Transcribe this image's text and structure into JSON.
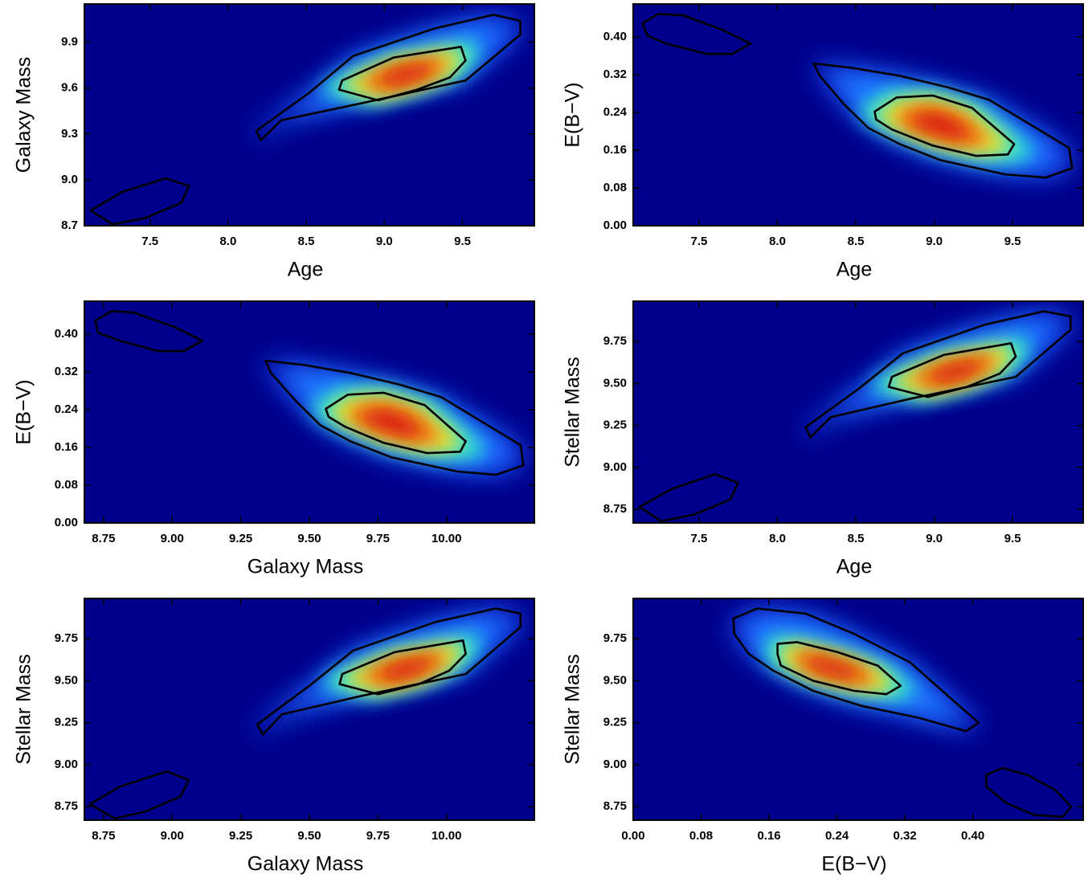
{
  "chart_data": [
    {
      "type": "density",
      "xlabel": "Age",
      "ylabel": "Galaxy Mass",
      "xlim": [
        7.08,
        9.96
      ],
      "ylim": [
        8.7,
        10.15
      ],
      "xticks": [
        7.5,
        {
          "value": 8,
          "label": "8.0"
        },
        8.5,
        {
          "value": 9,
          "label": "9.0"
        },
        9.5
      ],
      "yticks": [
        8.7,
        {
          "value": 9,
          "label": "9.0"
        },
        9.3,
        9.6,
        9.9
      ],
      "contours": [
        {
          "x": [
            8.18,
            8.52,
            8.8,
            9.32,
            9.7,
            9.87,
            9.87,
            9.52,
            8.85,
            8.34,
            8.21
          ],
          "y": [
            9.32,
            9.57,
            9.81,
            9.99,
            10.08,
            10.04,
            9.95,
            9.65,
            9.5,
            9.39,
            9.26
          ]
        },
        {
          "x": [
            8.73,
            9.06,
            9.49,
            9.52,
            9.42,
            9.21,
            8.96,
            8.71
          ],
          "y": [
            9.65,
            9.8,
            9.87,
            9.78,
            9.67,
            9.59,
            9.52,
            9.59
          ]
        },
        {
          "x": [
            7.12,
            7.32,
            7.6,
            7.75,
            7.7,
            7.47,
            7.26
          ],
          "y": [
            8.8,
            8.92,
            9.01,
            8.96,
            8.85,
            8.75,
            8.71
          ]
        }
      ]
    },
    {
      "type": "density",
      "xlabel": "Age",
      "ylabel": "E(B−V)",
      "xlim": [
        7.08,
        9.95
      ],
      "ylim": [
        0,
        0.47
      ],
      "xticks": [
        7.5,
        {
          "value": 8,
          "label": "8.0"
        },
        8.5,
        {
          "value": 9,
          "label": "9.0"
        },
        9.5
      ],
      "yticks": [
        {
          "value": 0,
          "label": "0.00"
        },
        0.08,
        0.16,
        0.24,
        0.32,
        {
          "value": 0.4,
          "label": "0.40"
        }
      ],
      "contours": [
        {
          "x": [
            8.23,
            8.47,
            8.78,
            9.09,
            9.35,
            9.65,
            9.86,
            9.88,
            9.71,
            9.45,
            9.04,
            8.78,
            8.58,
            8.42,
            8.27
          ],
          "y": [
            0.344,
            0.335,
            0.318,
            0.293,
            0.267,
            0.207,
            0.165,
            0.122,
            0.102,
            0.109,
            0.139,
            0.173,
            0.207,
            0.259,
            0.318
          ]
        },
        {
          "x": [
            8.62,
            8.76,
            8.99,
            9.24,
            9.51,
            9.47,
            9.27,
            8.99,
            8.73,
            8.63
          ],
          "y": [
            0.242,
            0.272,
            0.276,
            0.25,
            0.173,
            0.151,
            0.148,
            0.17,
            0.204,
            0.225
          ]
        },
        {
          "x": [
            7.14,
            7.24,
            7.4,
            7.65,
            7.83,
            7.71,
            7.55,
            7.29,
            7.17
          ],
          "y": [
            0.429,
            0.449,
            0.446,
            0.415,
            0.386,
            0.364,
            0.364,
            0.386,
            0.403
          ]
        }
      ]
    },
    {
      "type": "density",
      "xlabel": "Galaxy Mass",
      "ylabel": "E(B−V)",
      "xlim": [
        8.68,
        10.32
      ],
      "ylim": [
        0,
        0.47
      ],
      "xticks": [
        8.75,
        {
          "value": 9,
          "label": "9.00"
        },
        9.25,
        {
          "value": 9.5,
          "label": "9.50"
        },
        9.75,
        {
          "value": 10,
          "label": "10.00"
        }
      ],
      "yticks": [
        {
          "value": 0,
          "label": "0.00"
        },
        0.08,
        0.16,
        0.24,
        0.32,
        {
          "value": 0.4,
          "label": "0.40"
        }
      ],
      "contours": [
        {
          "x": [
            9.34,
            9.48,
            9.65,
            9.83,
            9.98,
            10.15,
            10.27,
            10.28,
            10.18,
            10.04,
            9.8,
            9.65,
            9.54,
            9.45,
            9.36
          ],
          "y": [
            0.344,
            0.335,
            0.318,
            0.293,
            0.267,
            0.207,
            0.165,
            0.122,
            0.102,
            0.109,
            0.139,
            0.173,
            0.207,
            0.259,
            0.318
          ]
        },
        {
          "x": [
            9.56,
            9.64,
            9.77,
            9.92,
            10.07,
            10.05,
            9.93,
            9.77,
            9.63,
            9.57
          ],
          "y": [
            0.242,
            0.272,
            0.276,
            0.25,
            0.173,
            0.151,
            0.148,
            0.17,
            0.204,
            0.225
          ]
        },
        {
          "x": [
            8.72,
            8.78,
            8.86,
            9.01,
            9.11,
            9.04,
            8.95,
            8.81,
            8.73
          ],
          "y": [
            0.429,
            0.449,
            0.446,
            0.415,
            0.386,
            0.364,
            0.364,
            0.386,
            0.403
          ]
        }
      ]
    },
    {
      "type": "density",
      "xlabel": "Age",
      "ylabel": "Stellar Mass",
      "xlim": [
        7.08,
        9.95
      ],
      "ylim": [
        8.67,
        9.99
      ],
      "xticks": [
        7.5,
        {
          "value": 8,
          "label": "8.0"
        },
        8.5,
        {
          "value": 9,
          "label": "9.0"
        },
        9.5
      ],
      "yticks": [
        8.75,
        {
          "value": 9,
          "label": "9.00"
        },
        9.25,
        {
          "value": 9.5,
          "label": "9.50"
        },
        9.75
      ],
      "contours": [
        {
          "x": [
            8.18,
            8.52,
            8.8,
            9.32,
            9.7,
            9.87,
            9.87,
            9.52,
            8.85,
            8.34,
            8.21
          ],
          "y": [
            9.24,
            9.47,
            9.68,
            9.85,
            9.93,
            9.9,
            9.82,
            9.54,
            9.41,
            9.3,
            9.18
          ]
        },
        {
          "x": [
            8.73,
            9.06,
            9.49,
            9.52,
            9.42,
            9.21,
            8.96,
            8.71
          ],
          "y": [
            9.54,
            9.67,
            9.74,
            9.66,
            9.56,
            9.48,
            9.42,
            9.48
          ]
        },
        {
          "x": [
            7.12,
            7.32,
            7.6,
            7.75,
            7.7,
            7.47,
            7.26
          ],
          "y": [
            8.765,
            8.87,
            8.96,
            8.91,
            8.81,
            8.72,
            8.68
          ]
        }
      ]
    },
    {
      "type": "density",
      "xlabel": "Galaxy Mass",
      "ylabel": "Stellar Mass",
      "xlim": [
        8.68,
        10.32
      ],
      "ylim": [
        8.67,
        9.99
      ],
      "xticks": [
        8.75,
        {
          "value": 9,
          "label": "9.00"
        },
        9.25,
        {
          "value": 9.5,
          "label": "9.50"
        },
        9.75,
        {
          "value": 10,
          "label": "10.00"
        }
      ],
      "yticks": [
        8.75,
        {
          "value": 9,
          "label": "9.00"
        },
        9.25,
        {
          "value": 9.5,
          "label": "9.50"
        },
        9.75
      ],
      "contours": [
        {
          "x": [
            9.31,
            9.5,
            9.66,
            9.96,
            10.18,
            10.27,
            10.27,
            10.07,
            9.69,
            9.4,
            9.33
          ],
          "y": [
            9.24,
            9.47,
            9.68,
            9.85,
            9.93,
            9.9,
            9.82,
            9.54,
            9.41,
            9.3,
            9.18
          ]
        },
        {
          "x": [
            9.62,
            9.81,
            10.06,
            10.07,
            10.01,
            9.9,
            9.75,
            9.61
          ],
          "y": [
            9.54,
            9.67,
            9.74,
            9.66,
            9.56,
            9.48,
            9.42,
            9.48
          ]
        },
        {
          "x": [
            8.7,
            8.81,
            8.98,
            9.06,
            9.03,
            8.9,
            8.79
          ],
          "y": [
            8.765,
            8.87,
            8.96,
            8.91,
            8.81,
            8.72,
            8.68
          ]
        }
      ]
    },
    {
      "type": "density",
      "xlabel": "E(B−V)",
      "ylabel": "Stellar Mass",
      "xlim": [
        0,
        0.53
      ],
      "ylim": [
        8.67,
        9.99
      ],
      "xticks": [
        {
          "value": 0,
          "label": "0.00"
        },
        0.08,
        0.16,
        0.24,
        0.32,
        {
          "value": 0.4,
          "label": "0.40"
        }
      ],
      "yticks": [
        8.75,
        {
          "value": 9,
          "label": "9.00"
        },
        9.25,
        {
          "value": 9.5,
          "label": "9.50"
        },
        9.75
      ],
      "contours": [
        {
          "x": [
            0.118,
            0.146,
            0.203,
            0.26,
            0.326,
            0.373,
            0.407,
            0.392,
            0.336,
            0.269,
            0.212,
            0.165,
            0.136,
            0.119
          ],
          "y": [
            9.87,
            9.93,
            9.9,
            9.78,
            9.61,
            9.4,
            9.25,
            9.2,
            9.28,
            9.35,
            9.44,
            9.56,
            9.66,
            9.78
          ]
        },
        {
          "x": [
            0.17,
            0.193,
            0.241,
            0.288,
            0.315,
            0.298,
            0.26,
            0.212,
            0.174,
            0.17
          ],
          "y": [
            9.72,
            9.73,
            9.67,
            9.59,
            9.47,
            9.42,
            9.44,
            9.5,
            9.59,
            9.66
          ]
        },
        {
          "x": [
            0.416,
            0.435,
            0.464,
            0.497,
            0.516,
            0.506,
            0.473,
            0.44,
            0.416
          ],
          "y": [
            8.94,
            8.98,
            8.94,
            8.85,
            8.75,
            8.69,
            8.7,
            8.77,
            8.87
          ]
        }
      ]
    }
  ]
}
